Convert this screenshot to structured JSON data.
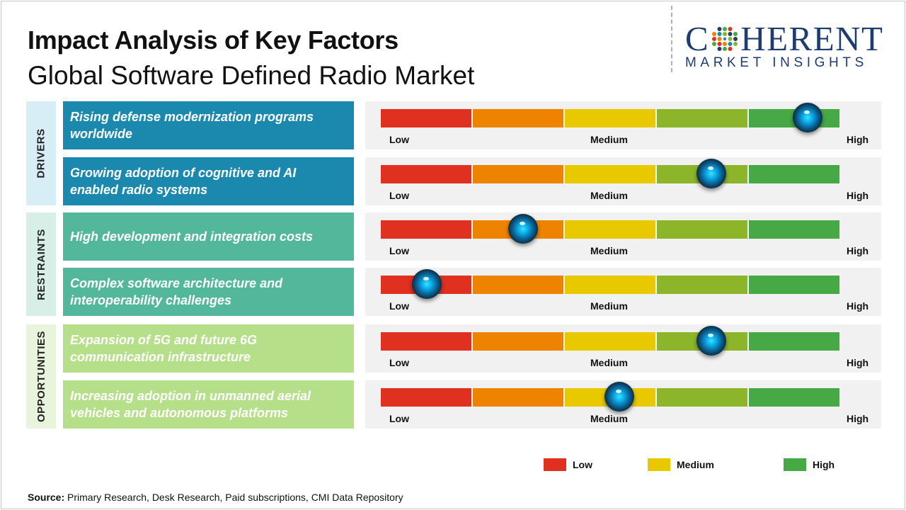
{
  "title": "Impact Analysis of Key Factors",
  "subtitle": "Global Software Defined Radio Market",
  "logo": {
    "brand": "COHERENT",
    "brand_pre": "C",
    "brand_post": "HERENT",
    "tagline": "MARKET INSIGHTS"
  },
  "colors": {
    "scale": [
      "#e03020",
      "#ee8300",
      "#e8c900",
      "#8db52a",
      "#46a945"
    ],
    "drivers": "#1b89ad",
    "drivers_cat": "#d8eef6",
    "restraints": "#52b79b",
    "restraints_cat": "#d8efe8",
    "opportunities": "#b6df8a",
    "opportunities_cat": "#e8f5dc"
  },
  "chart_data": {
    "type": "gauge-scale",
    "scale": {
      "labels": [
        "Low",
        "Medium",
        "High"
      ],
      "min": 0,
      "max": 1
    },
    "categories": [
      {
        "key": "drivers",
        "name": "DRIVERS",
        "factors": [
          {
            "label": "Rising defense modernization programs worldwide",
            "value": 0.93
          },
          {
            "label": "Growing adoption of cognitive and AI enabled radio systems",
            "value": 0.72
          }
        ]
      },
      {
        "key": "restraints",
        "name": "RESTRAINTS",
        "factors": [
          {
            "label": "High development and integration costs",
            "value": 0.31
          },
          {
            "label": "Complex software architecture and interoperability challenges",
            "value": 0.1
          }
        ]
      },
      {
        "key": "opportunities",
        "name": "OPPORTUNITIES",
        "factors": [
          {
            "label": "Expansion of 5G and future 6G communication infrastructure",
            "value": 0.72
          },
          {
            "label": "Increasing adoption in unmanned aerial vehicles and autonomous platforms",
            "value": 0.52
          }
        ]
      }
    ],
    "legend": [
      {
        "label": "Low",
        "color": "#e03020"
      },
      {
        "label": "Medium",
        "color": "#e8c900"
      },
      {
        "label": "High",
        "color": "#46a945"
      }
    ]
  },
  "source": {
    "prefix": "Source:",
    "text": " Primary Research, Desk Research, Paid subscriptions, CMI Data Repository"
  }
}
